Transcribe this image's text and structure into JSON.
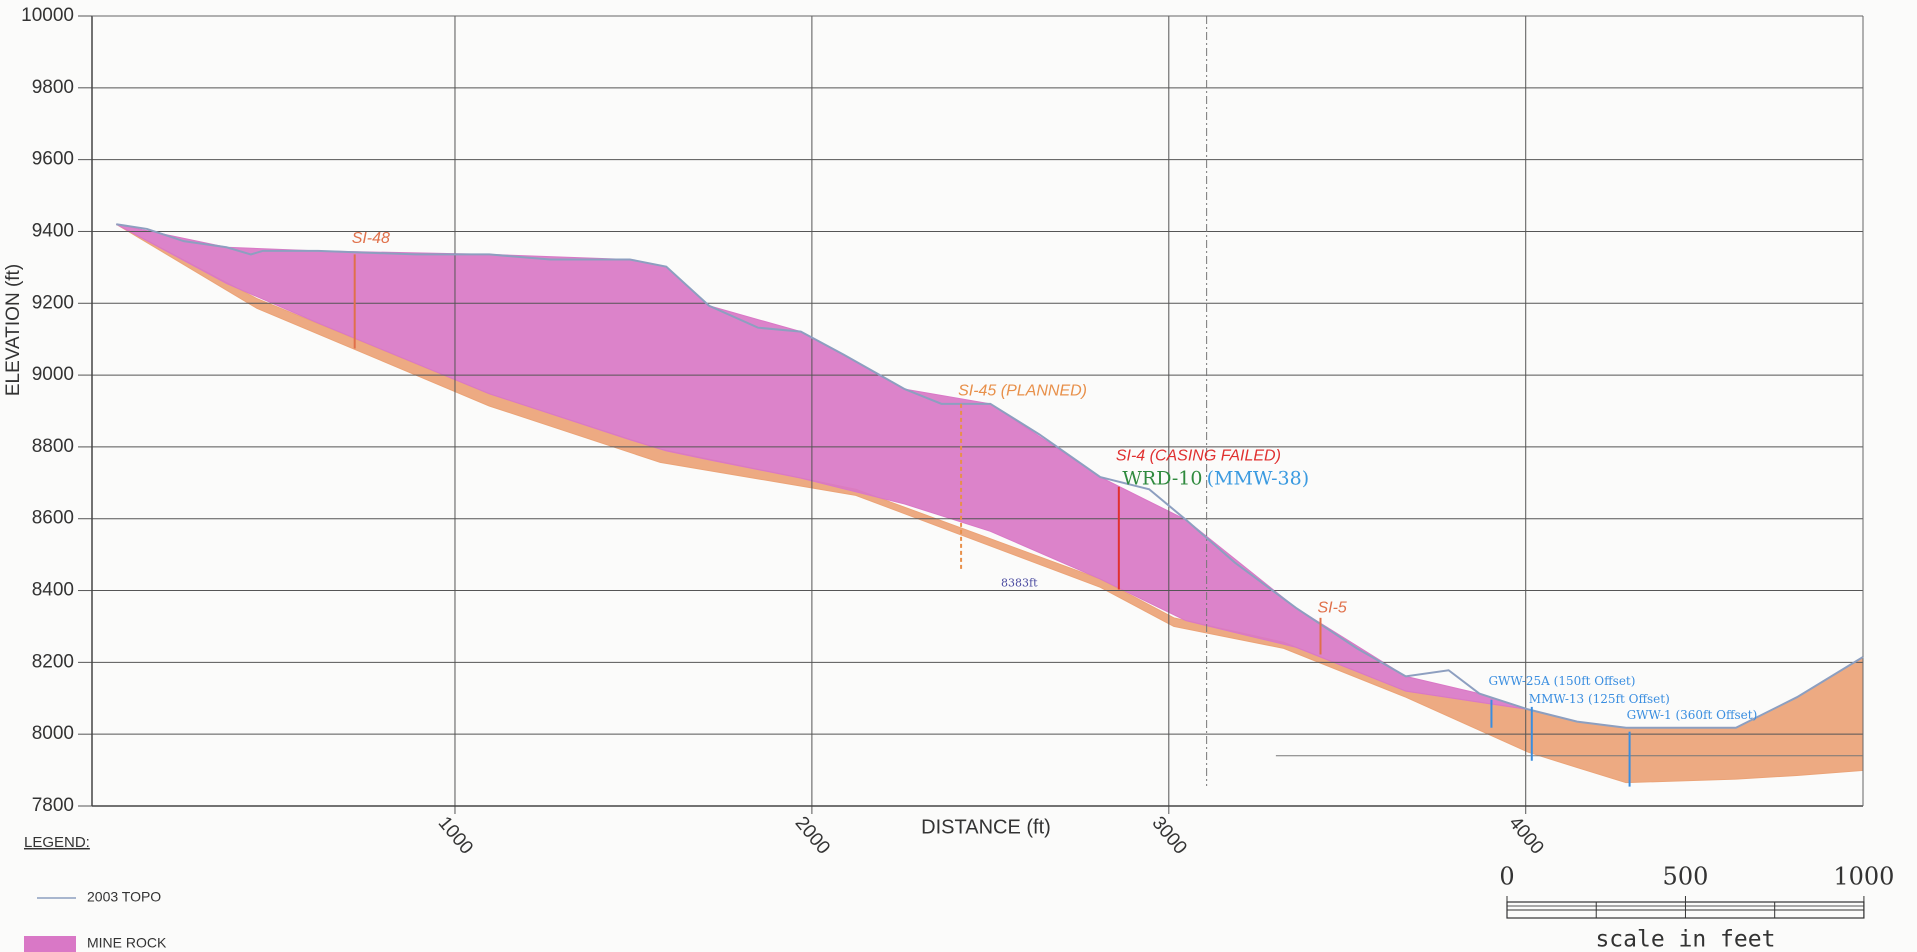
{
  "chart_data": {
    "type": "area",
    "x_label": "DISTANCE (ft)",
    "y_label": "ELEVATION (ft)",
    "xlim": [
      -17,
      4945
    ],
    "ylim": [
      7800,
      10000
    ],
    "xticks": [
      1000,
      2000,
      3000,
      4000
    ],
    "yticks": [
      7800,
      8000,
      8200,
      8400,
      8600,
      8800,
      9000,
      9200,
      9400,
      9600,
      9800,
      10000
    ],
    "grid": true,
    "areas": [
      {
        "color": "#eba377",
        "x": [
          51,
          445,
          1096,
          1575,
          2123,
          2808,
          3014,
          3322,
          3664,
          4007,
          4144,
          4281,
          4589,
          4760,
          4945
        ],
        "top": [
          9420,
          9213,
          8948,
          8794,
          8682,
          8432,
          8324,
          8256,
          8120,
          8069,
          8035,
          8018,
          8018,
          8103,
          8215
        ],
        "bottom": [
          9420,
          9186,
          8914,
          8757,
          8665,
          8409,
          8300,
          8239,
          8103,
          7950,
          7907,
          7865,
          7875,
          7885,
          7899
        ]
      },
      {
        "name": "MINE ROCK",
        "color": "#d978c6",
        "x": [
          51,
          360,
          616,
          1096,
          1490,
          1592,
          1712,
          1969,
          2260,
          2500,
          2808,
          3048,
          3356,
          3664,
          3870,
          4007
        ],
        "top": [
          9420,
          9356,
          9346,
          9336,
          9322,
          9302,
          9193,
          9121,
          8961,
          8920,
          8716,
          8597,
          8352,
          8161,
          8113,
          8069
        ],
        "bottom": [
          9420,
          9255,
          9145,
          8948,
          8820,
          8789,
          8764,
          8713,
          8641,
          8565,
          8432,
          8316,
          8242,
          8120,
          8089,
          8069
        ]
      }
    ],
    "series": [
      {
        "name": "2003 TOPO",
        "color": "#8d9fc0",
        "x": [
          51,
          137,
          240,
          360,
          428,
          462,
          616,
          890,
          1096,
          1267,
          1490,
          1592,
          1712,
          1849,
          1969,
          2089,
          2260,
          2363,
          2500,
          2637,
          2808,
          2945,
          3048,
          3185,
          3356,
          3527,
          3664,
          3784,
          3870,
          4007,
          4144,
          4281,
          4589,
          4760,
          4945
        ],
        "values": [
          9420,
          9407,
          9373,
          9356,
          9336,
          9346,
          9346,
          9336,
          9336,
          9322,
          9322,
          9302,
          9193,
          9132,
          9121,
          9057,
          8961,
          8920,
          8920,
          8835,
          8716,
          8682,
          8597,
          8478,
          8352,
          8239,
          8161,
          8178,
          8113,
          8069,
          8035,
          8018,
          8018,
          8103,
          8215
        ]
      }
    ],
    "boreholes": [
      {
        "label": "SI-48",
        "color": "#e0704a",
        "dashed": false,
        "x": 719,
        "top": 9336,
        "bottom": 9074,
        "label_y": 9380
      },
      {
        "label": "SI-45 (PLANNED)",
        "color": "#e8904a",
        "dashed": true,
        "x": 2418,
        "top": 8920,
        "bottom": 8460,
        "label_y": 8955
      },
      {
        "label": "SI-4 (CASING FAILED)",
        "color": "#e03030",
        "dashed": false,
        "x": 2860,
        "top": 8689,
        "bottom": 8403,
        "label_y": 8774
      },
      {
        "label": "SI-5",
        "color": "#e0704a",
        "dashed": false,
        "x": 3425,
        "top": 8324,
        "bottom": 8222,
        "label_y": 8351
      },
      {
        "label": "GWW-25A (150ft Offset)",
        "color": "#3a8ee0",
        "dashed": false,
        "x": 3904,
        "top": 8096,
        "bottom": 8018,
        "label_y": 8147
      },
      {
        "label": "MMW-13 (125ft Offset)",
        "color": "#3a8ee0",
        "dashed": false,
        "x": 4017,
        "top": 8076,
        "bottom": 7926,
        "label_y": 8096
      },
      {
        "label": "GWW-1 (360ft Offset)",
        "color": "#3a8ee0",
        "dashed": false,
        "x": 4291,
        "top": 8007,
        "bottom": 7854,
        "label_y": 8052
      }
    ],
    "annotations": [
      {
        "text": "WRD-10",
        "color": "#2f8a3e",
        "x": 2870,
        "y": 8709
      },
      {
        "text": "(MMW-38)",
        "color": "#3a9ae0",
        "x": 3106,
        "y": 8709
      },
      {
        "text": "8383ft",
        "color": "#4a4aa0",
        "x": 2530,
        "y": 8420
      }
    ],
    "vertical_lines": [
      3106
    ],
    "horizontal_lines": [
      7940
    ],
    "legend": {
      "title": "LEGEND:"
    },
    "scale_bar": {
      "ticks": [
        0,
        500,
        1000
      ],
      "label": "scale in feet"
    }
  }
}
